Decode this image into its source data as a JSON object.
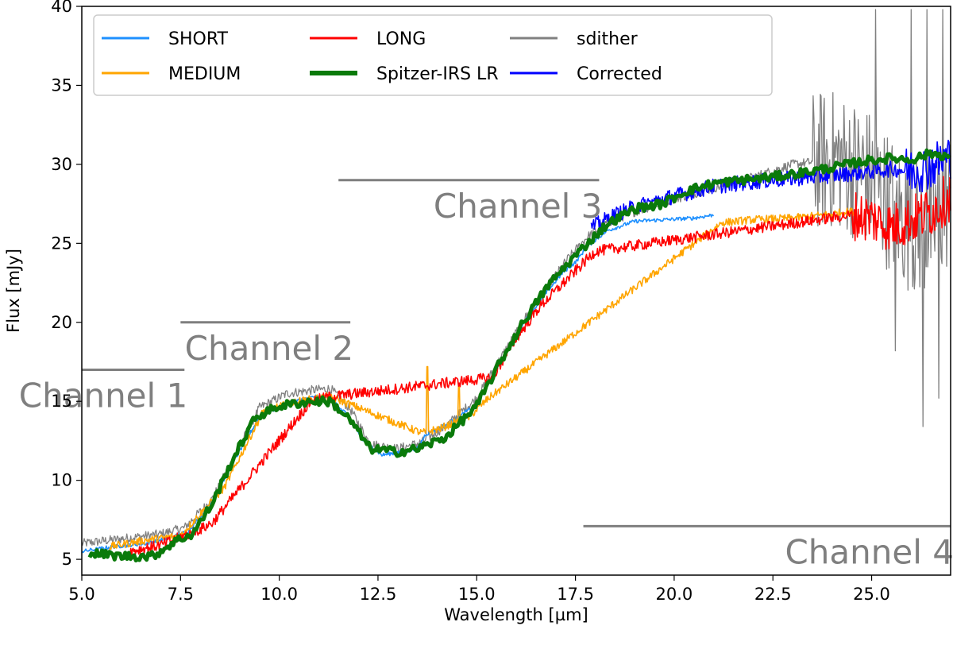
{
  "chart_data": {
    "type": "line",
    "xlabel": "Wavelength [µm]",
    "ylabel": "Flux [mJy]",
    "xlim": [
      5.0,
      27.0
    ],
    "ylim": [
      4.0,
      40.0
    ],
    "x_ticks": [
      5.0,
      7.5,
      10.0,
      12.5,
      15.0,
      17.5,
      20.0,
      22.5,
      25.0
    ],
    "x_tick_labels": [
      "5.0",
      "7.5",
      "10.0",
      "12.5",
      "15.0",
      "17.5",
      "20.0",
      "22.5",
      "25.0"
    ],
    "y_ticks": [
      5,
      10,
      15,
      20,
      25,
      30,
      35,
      40
    ],
    "y_tick_labels": [
      "5",
      "10",
      "15",
      "20",
      "25",
      "30",
      "35",
      "40"
    ],
    "grid": false,
    "legend_position": "top",
    "legend_columns": 3,
    "series": [
      {
        "name": "SHORT",
        "color": "#1e90ff",
        "noise": 0.12,
        "x": [
          5.0,
          5.8,
          6.6,
          7.3,
          7.7,
          8.3,
          8.8,
          9.5,
          10.2,
          10.9,
          11.3,
          11.7,
          12.1,
          12.6,
          13.1,
          13.5,
          13.7,
          14.3,
          15.0,
          15.6,
          16.2,
          16.8,
          17.2,
          17.5,
          17.8,
          18.3,
          19.0,
          19.8,
          20.5,
          21.0
        ],
        "y": [
          5.5,
          5.8,
          6.0,
          6.4,
          6.8,
          8.6,
          11.0,
          14.0,
          14.9,
          15.3,
          15.2,
          14.2,
          12.6,
          11.6,
          11.8,
          12.0,
          12.9,
          13.6,
          14.8,
          17.5,
          20.0,
          22.0,
          23.2,
          23.8,
          24.8,
          25.8,
          26.4,
          26.5,
          26.6,
          26.8
        ]
      },
      {
        "name": "MEDIUM",
        "color": "#ffa500",
        "noise": 0.25,
        "x": [
          5.7,
          6.6,
          7.5,
          8.6,
          9.6,
          10.5,
          11.2,
          11.6,
          13.6,
          14.1,
          14.8,
          15.3,
          21.2,
          22.0,
          23.0,
          23.8,
          24.4,
          24.6
        ],
        "y": [
          5.8,
          6.2,
          6.5,
          9.5,
          14.4,
          15.0,
          15.3,
          15.0,
          13.0,
          13.3,
          14.0,
          15.2,
          26.3,
          26.5,
          26.6,
          26.8,
          27.0,
          27.0
        ],
        "spikes": [
          [
            13.75,
            17.2
          ],
          [
            14.55,
            16.0
          ]
        ]
      },
      {
        "name": "LONG",
        "color": "#ff0000",
        "noise": 0.35,
        "x": [
          6.2,
          7.0,
          7.5,
          8.0,
          8.3,
          10.8,
          11.3,
          15.4,
          16.0,
          16.6,
          17.2,
          17.8,
          18.0,
          24.5,
          25.0,
          25.5,
          26.0,
          26.5,
          27.0
        ],
        "y": [
          5.5,
          5.9,
          6.4,
          6.9,
          7.3,
          15.0,
          15.3,
          16.5,
          19.0,
          21.0,
          22.5,
          24.0,
          24.5,
          26.8,
          26.6,
          26.0,
          26.5,
          27.0,
          28.0
        ],
        "wild_from": 24.5,
        "wild_noise": 1.6
      },
      {
        "name": "Spitzer-IRS LR",
        "color": "#0a7a0a",
        "noise": 0.28,
        "width": 5,
        "x": [
          5.2,
          6.0,
          6.8,
          7.4,
          7.8,
          8.3,
          8.8,
          9.4,
          10.0,
          10.8,
          11.3,
          11.8,
          12.3,
          13.0,
          13.5,
          14.2,
          15.0,
          15.6,
          16.2,
          16.8,
          17.3,
          17.8,
          18.3,
          19.0,
          19.7,
          20.3,
          21.0,
          21.7,
          22.5,
          23.3,
          24.0,
          24.8,
          25.5,
          26.0,
          26.5,
          27.0
        ],
        "y": [
          5.4,
          5.2,
          5.2,
          6.2,
          6.6,
          8.5,
          11.2,
          14.0,
          14.7,
          15.0,
          15.0,
          13.8,
          12.0,
          11.8,
          12.0,
          12.7,
          14.7,
          17.5,
          20.1,
          22.3,
          23.7,
          25.0,
          26.2,
          27.2,
          27.5,
          28.3,
          28.8,
          29.0,
          29.2,
          29.5,
          29.8,
          30.2,
          30.4,
          30.3,
          30.7,
          30.5
        ]
      },
      {
        "name": "sdither",
        "color": "#808080",
        "noise": 0.3,
        "width": 1.3,
        "x": [
          5.0,
          6.0,
          7.0,
          7.6,
          8.3,
          8.8,
          9.5,
          10.2,
          10.8,
          11.3,
          11.8,
          12.3,
          13.0,
          13.6,
          14.2,
          15.0,
          15.6,
          16.2,
          16.8,
          17.3,
          17.8,
          18.3,
          19.0,
          20.0,
          21.0,
          22.0,
          23.0,
          24.0,
          24.8,
          25.5,
          26.0,
          26.5,
          27.0
        ],
        "y": [
          6.0,
          6.3,
          6.6,
          7.0,
          8.8,
          11.2,
          14.6,
          15.5,
          15.7,
          15.8,
          14.5,
          12.3,
          12.0,
          12.4,
          13.4,
          15.2,
          17.7,
          20.2,
          22.3,
          24.0,
          25.4,
          26.3,
          27.0,
          27.8,
          28.5,
          29.2,
          30.0,
          30.3,
          29.5,
          27.5,
          26.0,
          26.0,
          28.0
        ],
        "wild_from": 23.5,
        "wild_noise": 4.5,
        "spikes": [
          [
            13.75,
            17.0
          ],
          [
            25.1,
            39.8
          ],
          [
            26.0,
            39.8
          ],
          [
            26.4,
            39.8
          ],
          [
            26.8,
            39.8
          ],
          [
            26.3,
            13.4
          ],
          [
            25.6,
            18.2
          ],
          [
            26.7,
            15.2
          ]
        ]
      },
      {
        "name": "Corrected",
        "color": "#0000ff",
        "noise": 0.5,
        "x": [
          17.9,
          18.5,
          19.0,
          20.0,
          21.0,
          22.0,
          23.0,
          24.0,
          24.8,
          25.5,
          26.0,
          26.5,
          27.0
        ],
        "y": [
          26.0,
          26.8,
          27.3,
          28.0,
          28.6,
          28.9,
          29.1,
          29.3,
          29.5,
          29.7,
          29.6,
          29.9,
          30.5
        ],
        "wild_from": 25.8,
        "wild_noise": 1.5
      }
    ],
    "annotations": [
      {
        "label": "Channel 1",
        "x_start": 5.0,
        "x_end": 7.6,
        "y": 17.0
      },
      {
        "label": "Channel 2",
        "x_start": 7.5,
        "x_end": 11.8,
        "y": 20.0
      },
      {
        "label": "Channel 3",
        "x_start": 11.5,
        "x_end": 18.1,
        "y": 29.0
      },
      {
        "label": "Channel 4",
        "x_start": 17.7,
        "x_end": 27.0,
        "y": 7.1
      }
    ]
  }
}
